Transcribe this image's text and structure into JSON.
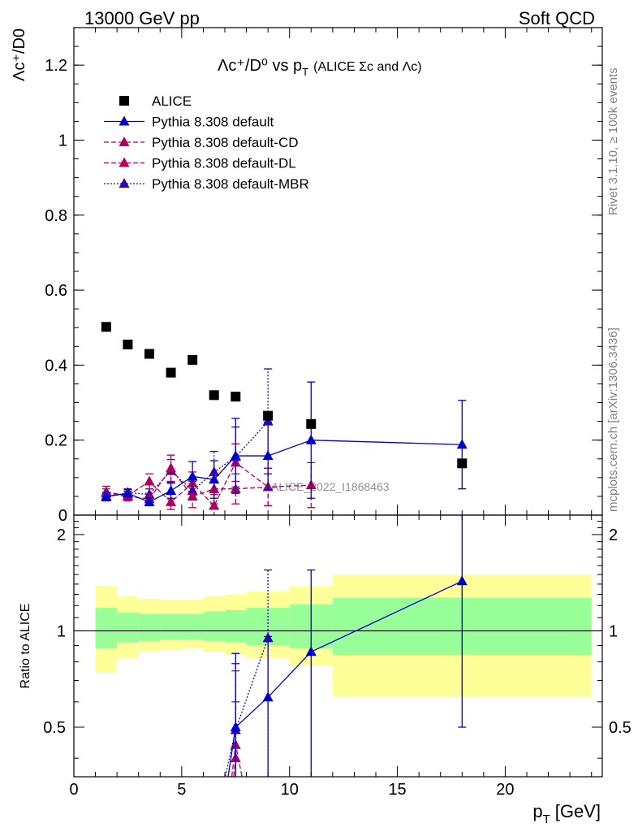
{
  "header": {
    "left": "13000 GeV pp",
    "right": "Soft QCD"
  },
  "side_labels": {
    "rivet": "Rivet 3.1.10, ≥ 100k events",
    "mcplots": "mcplots.cern.ch [arXiv:1306.3436]"
  },
  "watermark": "ALICE_2022_I1868463",
  "colors": {
    "data": "#000000",
    "default": "#0000cc",
    "cd": "#b0005a",
    "dl": "#b0005a",
    "mbr": "#3300aa",
    "band_yellow": "#ffff99",
    "band_green": "#99ff99"
  },
  "chart_data": [
    {
      "type": "scatter",
      "title": "Λc⁺/D⁰ vs p_T (ALICE Σc and Λc)",
      "title_main": "Λc⁺/D⁰ vs p",
      "title_sub": "T",
      "title_note": "(ALICE Σc and Λc)",
      "ylabel": "Λc⁺/D0",
      "xlabel": "",
      "xlim": [
        0,
        24.5
      ],
      "ylim": [
        0,
        1.3
      ],
      "yticks": [
        0,
        0.2,
        0.4,
        0.6,
        0.8,
        1,
        1.2
      ],
      "ytick_labels": [
        "0",
        "0.2",
        "0.4",
        "0.6",
        "0.8",
        "1",
        "1.2"
      ],
      "legend": {
        "placement": "top-left",
        "entries": [
          {
            "label": "ALICE",
            "style": "data"
          },
          {
            "label": "Pythia 8.308 default",
            "style": "default"
          },
          {
            "label": "Pythia 8.308 default-CD",
            "style": "cd"
          },
          {
            "label": "Pythia 8.308 default-DL",
            "style": "dl"
          },
          {
            "label": "Pythia 8.308 default-MBR",
            "style": "mbr"
          }
        ]
      },
      "series": [
        {
          "name": "ALICE",
          "style": "data",
          "x": [
            1.5,
            2.5,
            3.5,
            4.5,
            5.5,
            6.5,
            7.5,
            9,
            11,
            18
          ],
          "y": [
            0.502,
            0.455,
            0.43,
            0.38,
            0.414,
            0.32,
            0.316,
            0.265,
            0.243,
            0.138
          ]
        },
        {
          "name": "Pythia 8.308 default",
          "style": "default",
          "x": [
            1.5,
            2.5,
            3.5,
            4.5,
            5.5,
            6.5,
            7.5,
            9,
            11,
            18
          ],
          "y": [
            0.05,
            0.058,
            0.035,
            0.065,
            0.103,
            0.095,
            0.158,
            0.158,
            0.2,
            0.188
          ],
          "err": [
            0.01,
            0.01,
            0.01,
            0.02,
            0.04,
            0.05,
            0.1,
            0.09,
            0.155,
            0.118
          ]
        },
        {
          "name": "Pythia 8.308 default-CD",
          "style": "cd",
          "x": [
            1.5,
            2.5,
            3.5,
            4.5,
            5.5,
            6.5,
            7.5,
            9
          ],
          "y": [
            0.062,
            0.052,
            0.09,
            0.035,
            0.085,
            0.025,
            0.14,
            0.075
          ],
          "err": [
            0.015,
            0.012,
            0.02,
            0.02,
            0.03,
            0.03,
            0.05,
            0.05
          ]
        },
        {
          "name": "Pythia 8.308 default-DL",
          "style": "dl",
          "x": [
            1.5,
            2.5,
            3.5,
            4.5,
            5.5,
            6.5,
            7.5,
            9,
            11
          ],
          "y": [
            0.058,
            0.05,
            0.043,
            0.125,
            0.05,
            0.07,
            0.07,
            0.075,
            0.08
          ],
          "err": [
            0.012,
            0.012,
            0.015,
            0.035,
            0.03,
            0.04,
            0.04,
            0.05,
            0.06
          ]
        },
        {
          "name": "Pythia 8.308 default-MBR",
          "style": "mbr",
          "x": [
            1.5,
            2.5,
            3.5,
            4.5,
            5.5,
            6.5,
            7.5,
            9
          ],
          "y": [
            0.048,
            0.06,
            0.055,
            0.118,
            0.065,
            0.115,
            0.155,
            0.25
          ],
          "err": [
            0.01,
            0.01,
            0.015,
            0.03,
            0.025,
            0.055,
            0.08,
            0.14
          ]
        }
      ]
    },
    {
      "type": "line",
      "title": "",
      "ylabel": "Ratio to ALICE",
      "xlabel": "p_T [GeV]",
      "xlabel_main": "p",
      "xlabel_sub": "T",
      "xlabel_unit": "[GeV]",
      "xlim": [
        0,
        24.5
      ],
      "ylim": [
        0.35,
        2.3
      ],
      "xticks": [
        0,
        5,
        10,
        15,
        20
      ],
      "xtick_labels": [
        "0",
        "5",
        "10",
        "15",
        "20"
      ],
      "yticks": [
        0.5,
        1,
        2
      ],
      "ytick_labels": [
        "0.5",
        "1",
        "2"
      ],
      "reference_line": 1,
      "bands": {
        "edges": [
          1,
          2,
          3,
          4,
          5,
          6,
          7,
          8,
          10,
          12,
          24
        ],
        "yellow_low": [
          0.74,
          0.82,
          0.86,
          0.87,
          0.88,
          0.86,
          0.84,
          0.82,
          0.78,
          0.62
        ],
        "yellow_high": [
          1.38,
          1.28,
          1.26,
          1.25,
          1.25,
          1.28,
          1.3,
          1.33,
          1.38,
          1.5
        ],
        "green_low": [
          0.88,
          0.92,
          0.93,
          0.94,
          0.94,
          0.93,
          0.92,
          0.9,
          0.88,
          0.84
        ],
        "green_high": [
          1.18,
          1.14,
          1.13,
          1.13,
          1.13,
          1.15,
          1.16,
          1.18,
          1.21,
          1.27
        ]
      },
      "series": [
        {
          "name": "Pythia 8.308 default",
          "style": "default",
          "x": [
            7.5,
            9,
            11,
            18
          ],
          "y": [
            0.5,
            0.62,
            0.86,
            1.43
          ],
          "err": [
            0.35,
            0.34,
            0.69,
            0.93
          ],
          "lead_in_x": 7.0,
          "lead_in_y": 0.3
        },
        {
          "name": "Pythia 8.308 default-CD",
          "style": "cd",
          "x": [
            7.5
          ],
          "y": [
            0.44
          ],
          "err": [
            0.31
          ],
          "lead_in_x": 7.2,
          "lead_in_y": 0.3,
          "lead_out_x": 8.0,
          "lead_out_y": 0.3
        },
        {
          "name": "Pythia 8.308 default-DL",
          "style": "dl",
          "x": [
            7.5
          ],
          "y": [
            0.4
          ],
          "err": [
            0.2
          ],
          "lead_in_x": 7.3,
          "lead_in_y": 0.3
        },
        {
          "name": "Pythia 8.308 default-MBR",
          "style": "mbr",
          "x": [
            7.5,
            9
          ],
          "y": [
            0.49,
            0.95
          ],
          "err": [
            0.3,
            0.6
          ],
          "lead_in_x": 6.8,
          "lead_in_y": 0.3
        }
      ]
    }
  ]
}
